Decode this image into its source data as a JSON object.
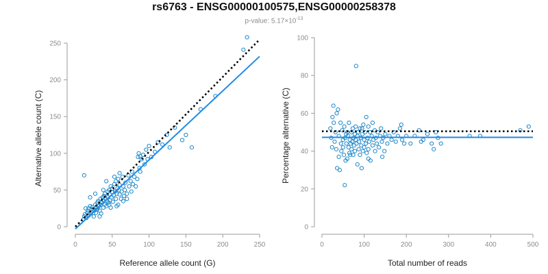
{
  "header": {
    "title": "rs6763 - ENSG00000100575,ENSG00000258378",
    "pvalue_prefix": "p-value: 5.17×10",
    "pvalue_exponent": "-13"
  },
  "colors": {
    "points": "#1c86c8",
    "fit_line": "#1f8ae6",
    "reference_line": "#000000",
    "axis": "#9a9a9a",
    "tick_text": "#8c8c8c"
  },
  "chart_data": [
    {
      "type": "scatter",
      "xlabel": "Reference allele count (G)",
      "ylabel": "Alternative allele count (C)",
      "xlim": [
        0,
        250
      ],
      "ylim": [
        0,
        250
      ],
      "xticks": [
        0,
        50,
        100,
        150,
        200,
        250
      ],
      "yticks": [
        0,
        50,
        100,
        150,
        200,
        250
      ],
      "grid": false,
      "points": [
        [
          11,
          10
        ],
        [
          12,
          14
        ],
        [
          13,
          17
        ],
        [
          15,
          12
        ],
        [
          16,
          19
        ],
        [
          17,
          22
        ],
        [
          18,
          25
        ],
        [
          18,
          15
        ],
        [
          20,
          28
        ],
        [
          21,
          18
        ],
        [
          22,
          20
        ],
        [
          23,
          27
        ],
        [
          24,
          24
        ],
        [
          25,
          14
        ],
        [
          26,
          22
        ],
        [
          27,
          30
        ],
        [
          28,
          19
        ],
        [
          29,
          26
        ],
        [
          30,
          33
        ],
        [
          30,
          24
        ],
        [
          31,
          35
        ],
        [
          32,
          28
        ],
        [
          33,
          22
        ],
        [
          34,
          38
        ],
        [
          35,
          30
        ],
        [
          35,
          18
        ],
        [
          36,
          33
        ],
        [
          37,
          40
        ],
        [
          38,
          26
        ],
        [
          38,
          36
        ],
        [
          39,
          42
        ],
        [
          40,
          30
        ],
        [
          40,
          45
        ],
        [
          41,
          38
        ],
        [
          42,
          28
        ],
        [
          43,
          35
        ],
        [
          44,
          48
        ],
        [
          44,
          40
        ],
        [
          45,
          33
        ],
        [
          46,
          50
        ],
        [
          47,
          36
        ],
        [
          47,
          44
        ],
        [
          48,
          55
        ],
        [
          48,
          26
        ],
        [
          49,
          40
        ],
        [
          50,
          47
        ],
        [
          50,
          52
        ],
        [
          51,
          34
        ],
        [
          52,
          43
        ],
        [
          53,
          58
        ],
        [
          54,
          48
        ],
        [
          55,
          38
        ],
        [
          55,
          62
        ],
        [
          56,
          45
        ],
        [
          57,
          52
        ],
        [
          58,
          30
        ],
        [
          58,
          65
        ],
        [
          59,
          50
        ],
        [
          60,
          44
        ],
        [
          60,
          57
        ],
        [
          62,
          38
        ],
        [
          63,
          48
        ],
        [
          64,
          68
        ],
        [
          65,
          55
        ],
        [
          66,
          42
        ],
        [
          67,
          50
        ],
        [
          68,
          60
        ],
        [
          70,
          45
        ],
        [
          72,
          70
        ],
        [
          73,
          55
        ],
        [
          75,
          62
        ],
        [
          76,
          48
        ],
        [
          78,
          58
        ],
        [
          80,
          68
        ],
        [
          82,
          55
        ],
        [
          84,
          65
        ],
        [
          85,
          95
        ],
        [
          86,
          100
        ],
        [
          87,
          80
        ],
        [
          88,
          96
        ],
        [
          88,
          75
        ],
        [
          90,
          92
        ],
        [
          92,
          98
        ],
        [
          94,
          85
        ],
        [
          96,
          105
        ],
        [
          98,
          92
        ],
        [
          100,
          110
        ],
        [
          103,
          95
        ],
        [
          108,
          102
        ],
        [
          112,
          115
        ],
        [
          118,
          112
        ],
        [
          124,
          125
        ],
        [
          128,
          108
        ],
        [
          135,
          135
        ],
        [
          145,
          118
        ],
        [
          150,
          125
        ],
        [
          158,
          108
        ],
        [
          170,
          160
        ],
        [
          190,
          178
        ],
        [
          228,
          241
        ],
        [
          233,
          258
        ],
        [
          12,
          70
        ],
        [
          20,
          40
        ],
        [
          14,
          25
        ],
        [
          42,
          62
        ],
        [
          46,
          30
        ],
        [
          53,
          68
        ],
        [
          60,
          73
        ],
        [
          38,
          50
        ],
        [
          27,
          45
        ],
        [
          33,
          14
        ],
        [
          56,
          28
        ],
        [
          70,
          38
        ],
        [
          77,
          75
        ],
        [
          65,
          35
        ]
      ],
      "fit_line": {
        "x": [
          0,
          250
        ],
        "y": [
          -3,
          232
        ]
      },
      "reference_line": {
        "x": [
          0,
          250
        ],
        "y": [
          0,
          255
        ]
      }
    },
    {
      "type": "scatter",
      "xlabel": "Total number of reads",
      "ylabel": "Percentage alternative (C)",
      "xlim": [
        0,
        500
      ],
      "ylim": [
        0,
        100
      ],
      "xticks": [
        0,
        100,
        200,
        300,
        400,
        500
      ],
      "yticks": [
        0,
        20,
        40,
        60,
        80,
        100
      ],
      "grid": false,
      "points": [
        [
          20,
          52
        ],
        [
          22,
          47
        ],
        [
          24,
          42
        ],
        [
          25,
          58
        ],
        [
          27,
          64
        ],
        [
          28,
          55
        ],
        [
          30,
          45
        ],
        [
          32,
          50
        ],
        [
          34,
          41
        ],
        [
          35,
          60
        ],
        [
          36,
          31
        ],
        [
          38,
          62
        ],
        [
          40,
          48
        ],
        [
          40,
          37
        ],
        [
          42,
          30
        ],
        [
          44,
          55
        ],
        [
          45,
          44
        ],
        [
          46,
          40
        ],
        [
          48,
          51
        ],
        [
          50,
          46
        ],
        [
          50,
          42
        ],
        [
          52,
          38
        ],
        [
          53,
          53
        ],
        [
          54,
          22
        ],
        [
          55,
          47
        ],
        [
          56,
          35
        ],
        [
          58,
          44
        ],
        [
          60,
          50
        ],
        [
          60,
          36
        ],
        [
          62,
          48
        ],
        [
          63,
          42
        ],
        [
          64,
          55
        ],
        [
          65,
          39
        ],
        [
          66,
          46
        ],
        [
          68,
          44
        ],
        [
          70,
          50
        ],
        [
          70,
          41
        ],
        [
          72,
          45
        ],
        [
          73,
          52
        ],
        [
          74,
          38
        ],
        [
          75,
          47
        ],
        [
          76,
          43
        ],
        [
          78,
          49
        ],
        [
          78,
          40
        ],
        [
          80,
          46
        ],
        [
          80,
          53
        ],
        [
          81,
          85
        ],
        [
          82,
          44
        ],
        [
          84,
          48
        ],
        [
          84,
          33
        ],
        [
          86,
          50
        ],
        [
          87,
          41
        ],
        [
          88,
          45
        ],
        [
          90,
          52
        ],
        [
          90,
          38
        ],
        [
          92,
          47
        ],
        [
          93,
          43
        ],
        [
          94,
          31
        ],
        [
          96,
          49
        ],
        [
          97,
          40
        ],
        [
          98,
          54
        ],
        [
          100,
          46
        ],
        [
          100,
          42
        ],
        [
          102,
          50
        ],
        [
          104,
          44
        ],
        [
          105,
          58
        ],
        [
          106,
          39
        ],
        [
          108,
          47
        ],
        [
          110,
          53
        ],
        [
          110,
          41
        ],
        [
          112,
          45
        ],
        [
          114,
          50
        ],
        [
          115,
          35
        ],
        [
          118,
          48
        ],
        [
          120,
          43
        ],
        [
          120,
          55
        ],
        [
          122,
          46
        ],
        [
          125,
          51
        ],
        [
          126,
          40
        ],
        [
          128,
          47
        ],
        [
          130,
          44
        ],
        [
          132,
          50
        ],
        [
          135,
          42
        ],
        [
          138,
          48
        ],
        [
          140,
          52
        ],
        [
          142,
          45
        ],
        [
          145,
          47
        ],
        [
          148,
          40
        ],
        [
          150,
          49
        ],
        [
          155,
          44
        ],
        [
          160,
          48
        ],
        [
          165,
          46
        ],
        [
          170,
          50
        ],
        [
          175,
          45
        ],
        [
          180,
          48
        ],
        [
          185,
          52
        ],
        [
          188,
          54
        ],
        [
          190,
          46
        ],
        [
          195,
          44
        ],
        [
          200,
          48
        ],
        [
          210,
          44
        ],
        [
          220,
          48
        ],
        [
          230,
          51
        ],
        [
          235,
          45
        ],
        [
          240,
          46
        ],
        [
          250,
          49
        ],
        [
          260,
          44
        ],
        [
          265,
          41
        ],
        [
          270,
          50
        ],
        [
          275,
          47
        ],
        [
          282,
          44
        ],
        [
          350,
          48
        ],
        [
          375,
          48
        ],
        [
          470,
          51
        ],
        [
          490,
          53
        ],
        [
          110,
          36
        ],
        [
          95,
          52
        ],
        [
          67,
          38
        ],
        [
          57,
          49
        ],
        [
          143,
          37
        ]
      ],
      "fit_line": {
        "x": [
          0,
          500
        ],
        "y": [
          47.3,
          47.3
        ]
      },
      "reference_line": {
        "x": [
          0,
          500
        ],
        "y": [
          50.5,
          50.5
        ]
      }
    }
  ]
}
